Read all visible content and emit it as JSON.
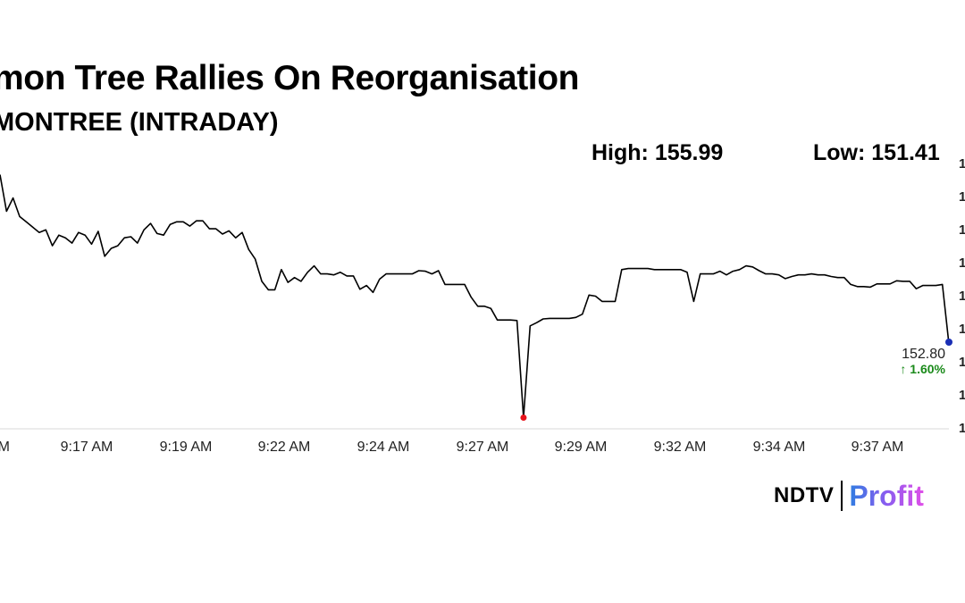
{
  "title": "mon Tree Rallies On Reorganisation",
  "subtitle": "MONTREE (INTRADAY)",
  "stats": {
    "high": "High: 155.99",
    "low": "Low: 151.41"
  },
  "logo": {
    "ndtv": "NDTV",
    "profit": "Profit"
  },
  "chart_data": {
    "type": "line",
    "title": "mon Tree Rallies On Reorganisation",
    "subtitle": "MONTREE (INTRADAY)",
    "xlabel": "",
    "ylabel": "",
    "x_tick_labels": [
      "AM",
      "9:17 AM",
      "9:19 AM",
      "9:22 AM",
      "9:24 AM",
      "9:27 AM",
      "9:29 AM",
      "9:32 AM",
      "9:34 AM",
      "9:37 AM"
    ],
    "y_tick_labels": [
      "1",
      "1",
      "1",
      "1",
      "1",
      "1",
      "1",
      "1",
      "1"
    ],
    "ylim": [
      151.2,
      156.2
    ],
    "grid": false,
    "last_price_label": "152.80",
    "change_label": "↑ 1.60%",
    "colors": {
      "line": "#000000",
      "low_marker": "#e8141c",
      "last_marker": "#1a2fb5",
      "change": "#1a8a1a"
    },
    "series": [
      {
        "values": [
          155.99,
          155.3,
          155.55,
          155.2,
          155.1,
          155.0,
          154.9,
          154.95,
          154.65,
          154.85,
          154.8,
          154.7,
          154.9,
          154.85,
          154.68,
          154.92,
          154.45,
          154.6,
          154.65,
          154.8,
          154.82,
          154.7,
          154.95,
          155.07,
          154.88,
          154.85,
          155.05,
          155.1,
          155.1,
          155.02,
          155.12,
          155.12,
          154.97,
          154.97,
          154.87,
          154.93,
          154.8,
          154.9,
          154.58,
          154.4,
          153.98,
          153.82,
          153.82,
          154.2,
          153.96,
          154.05,
          153.98,
          154.15,
          154.27,
          154.12,
          154.12,
          154.1,
          154.15,
          154.08,
          154.08,
          153.83,
          153.9,
          153.77,
          154.02,
          154.12,
          154.12,
          154.12,
          154.12,
          154.12,
          154.18,
          154.17,
          154.12,
          154.18,
          153.92,
          153.92,
          153.92,
          153.92,
          153.68,
          153.51,
          153.51,
          153.47,
          153.25,
          153.25,
          153.25,
          153.24,
          151.41,
          153.14,
          153.2,
          153.27,
          153.28,
          153.28,
          153.28,
          153.28,
          153.3,
          153.36,
          153.72,
          153.7,
          153.6,
          153.6,
          153.6,
          154.2,
          154.22,
          154.22,
          154.22,
          154.22,
          154.2,
          154.2,
          154.2,
          154.2,
          154.2,
          154.15,
          153.6,
          154.12,
          154.12,
          154.12,
          154.17,
          154.1,
          154.17,
          154.2,
          154.27,
          154.25,
          154.18,
          154.12,
          154.12,
          154.1,
          154.03,
          154.07,
          154.1,
          154.1,
          154.12,
          154.1,
          154.1,
          154.07,
          154.05,
          154.05,
          153.92,
          153.88,
          153.88,
          153.87,
          153.93,
          153.93,
          153.93,
          153.99,
          153.98,
          153.98,
          153.84,
          153.9,
          153.9,
          153.9,
          153.92,
          152.8
        ]
      }
    ]
  }
}
